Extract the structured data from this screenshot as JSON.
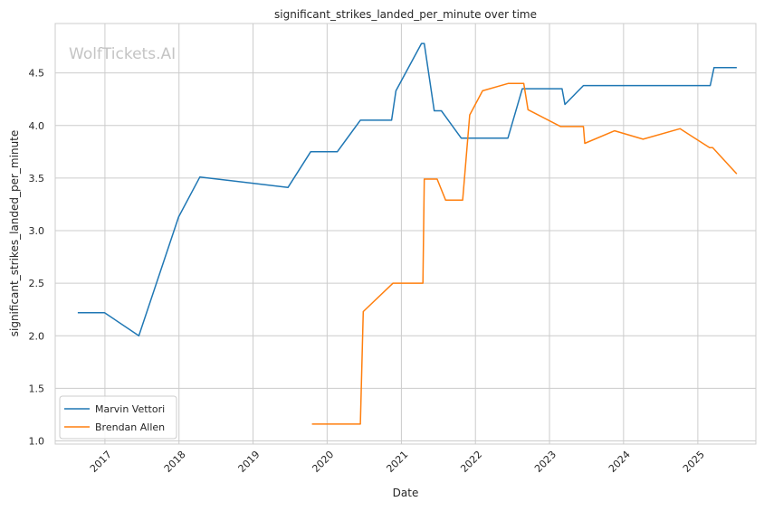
{
  "chart_data": {
    "type": "line",
    "title": "significant_strikes_landed_per_minute over time",
    "xlabel": "Date",
    "ylabel": "significant_strikes_landed_per_minute",
    "watermark": "WolfTickets.AI",
    "x_ticks": [
      "2017",
      "2018",
      "2019",
      "2020",
      "2021",
      "2022",
      "2023",
      "2024",
      "2025"
    ],
    "y_ticks": [
      "1.0",
      "1.5",
      "2.0",
      "2.5",
      "3.0",
      "3.5",
      "4.0",
      "4.5"
    ],
    "xlim": [
      "2016-05-01",
      "2025-10-14"
    ],
    "ylim": [
      0.97,
      4.97
    ],
    "grid": true,
    "legend_position": "lower-left",
    "series": [
      {
        "name": "Marvin Vettori",
        "color": "#1f77b4",
        "points": [
          [
            "2016-08-20",
            2.22
          ],
          [
            "2016-12-30",
            2.22
          ],
          [
            "2017-06-17",
            2.0
          ],
          [
            "2017-12-30",
            3.13
          ],
          [
            "2018-04-14",
            3.51
          ],
          [
            "2019-06-22",
            3.41
          ],
          [
            "2019-10-12",
            3.75
          ],
          [
            "2020-02-20",
            3.75
          ],
          [
            "2020-06-13",
            4.05
          ],
          [
            "2020-11-14",
            4.05
          ],
          [
            "2020-12-05",
            4.33
          ],
          [
            "2021-04-10",
            4.78
          ],
          [
            "2021-04-24",
            4.78
          ],
          [
            "2021-06-12",
            4.14
          ],
          [
            "2021-07-17",
            4.14
          ],
          [
            "2021-10-23",
            3.88
          ],
          [
            "2022-06-10",
            3.88
          ],
          [
            "2022-08-20",
            4.35
          ],
          [
            "2023-03-04",
            4.35
          ],
          [
            "2023-03-18",
            4.2
          ],
          [
            "2023-06-17",
            4.38
          ],
          [
            "2025-03-03",
            4.38
          ],
          [
            "2025-03-22",
            4.55
          ],
          [
            "2025-07-12",
            4.55
          ]
        ]
      },
      {
        "name": "Brendan Allen",
        "color": "#ff7f0e",
        "points": [
          [
            "2019-10-18",
            1.16
          ],
          [
            "2020-06-13",
            1.16
          ],
          [
            "2020-06-27",
            2.23
          ],
          [
            "2020-11-21",
            2.5
          ],
          [
            "2021-04-17",
            2.5
          ],
          [
            "2021-04-24",
            3.49
          ],
          [
            "2021-06-26",
            3.49
          ],
          [
            "2021-08-07",
            3.29
          ],
          [
            "2021-10-30",
            3.29
          ],
          [
            "2021-12-04",
            4.1
          ],
          [
            "2022-02-05",
            4.33
          ],
          [
            "2022-06-11",
            4.4
          ],
          [
            "2022-08-27",
            4.4
          ],
          [
            "2022-09-17",
            4.15
          ],
          [
            "2023-02-25",
            3.99
          ],
          [
            "2023-06-17",
            3.99
          ],
          [
            "2023-06-24",
            3.83
          ],
          [
            "2023-11-18",
            3.95
          ],
          [
            "2024-04-06",
            3.87
          ],
          [
            "2024-10-05",
            3.97
          ],
          [
            "2025-02-28",
            3.79
          ],
          [
            "2025-03-15",
            3.79
          ],
          [
            "2025-07-12",
            3.54
          ]
        ]
      }
    ]
  }
}
